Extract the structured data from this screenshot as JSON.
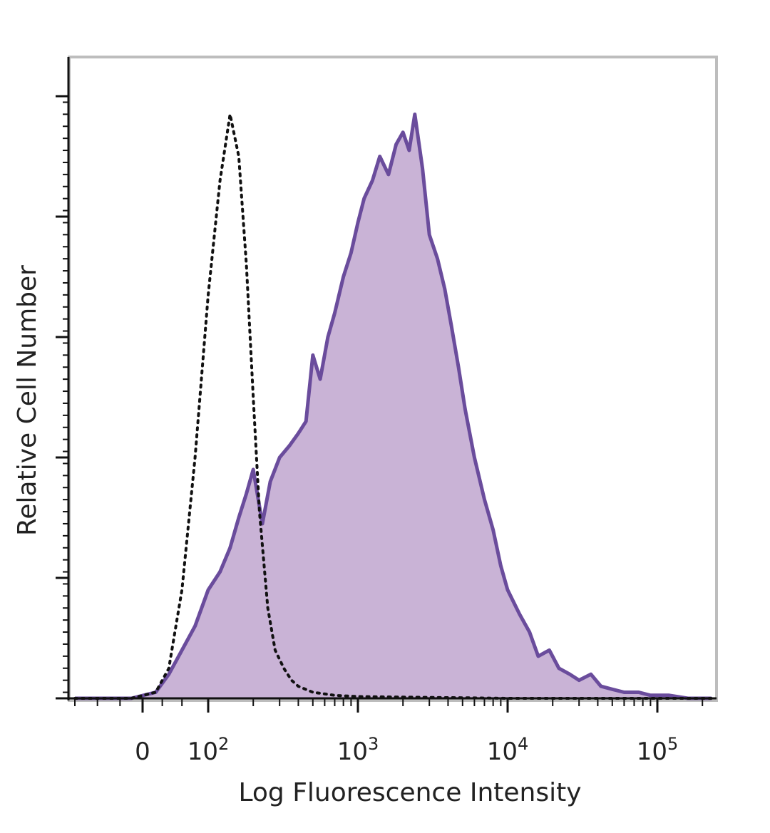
{
  "chart_data": {
    "type": "area",
    "xlabel": "Log Fluorescence Intensity",
    "ylabel": "Relative Cell Number",
    "x_scale": "biexponential",
    "x_tick_labels": [
      {
        "value": 0,
        "base": "0",
        "exp": ""
      },
      {
        "value": 100,
        "base": "10",
        "exp": "2"
      },
      {
        "value": 1000,
        "base": "10",
        "exp": "3"
      },
      {
        "value": 10000,
        "base": "10",
        "exp": "4"
      },
      {
        "value": 100000,
        "base": "10",
        "exp": "5"
      }
    ],
    "ylim": [
      0,
      100
    ],
    "grid": false,
    "colors": {
      "stained_line": "#6a4c9c",
      "stained_fill": "#c9b3d6",
      "control_line": "#111111"
    },
    "series": [
      {
        "style": "filled-solid",
        "x": [
          -300,
          -50,
          20,
          40,
          60,
          80,
          100,
          120,
          140,
          160,
          180,
          200,
          230,
          260,
          300,
          350,
          400,
          450,
          500,
          560,
          630,
          700,
          800,
          900,
          1000,
          1100,
          1250,
          1400,
          1600,
          1800,
          2000,
          2200,
          2400,
          2700,
          3000,
          3400,
          3800,
          4200,
          4700,
          5200,
          6000,
          7000,
          8000,
          9000,
          10000,
          12000,
          14000,
          16000,
          19000,
          22000,
          26000,
          30000,
          36000,
          42000,
          50000,
          60000,
          75000,
          90000,
          120000,
          160000,
          230000
        ],
        "y": [
          0,
          0,
          1,
          4,
          8,
          12,
          18,
          21,
          25,
          30,
          34,
          38,
          29,
          36,
          40,
          42,
          44,
          46,
          57,
          53,
          60,
          64,
          70,
          74,
          79,
          83,
          86,
          90,
          87,
          92,
          94,
          91,
          97,
          88,
          77,
          73,
          68,
          62,
          55,
          48,
          40,
          33,
          28,
          22,
          18,
          14,
          11,
          7,
          8,
          5,
          4,
          3,
          4,
          2,
          1.5,
          1,
          1,
          0.5,
          0.5,
          0,
          0
        ]
      },
      {
        "style": "dotted",
        "x": [
          -300,
          -50,
          20,
          40,
          60,
          80,
          100,
          120,
          140,
          160,
          180,
          200,
          220,
          250,
          280,
          320,
          360,
          400,
          500,
          700,
          1000,
          2000,
          5000,
          10000,
          50000,
          230000
        ],
        "y": [
          0,
          0,
          1,
          5,
          18,
          40,
          67,
          86,
          97,
          90,
          72,
          50,
          31,
          15,
          8,
          5,
          3,
          2,
          1,
          0.5,
          0.3,
          0.2,
          0.1,
          0,
          0,
          0
        ]
      }
    ]
  }
}
